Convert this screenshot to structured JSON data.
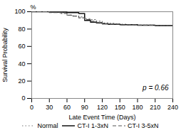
{
  "chart_data": {
    "type": "line",
    "xlabel": "Late Event Time (Days)",
    "ylabel": "Survival Probability",
    "annotations": [
      "%",
      "p = 0.66"
    ],
    "xlim": [
      0,
      240
    ],
    "ylim": [
      0,
      100
    ],
    "xticks": [
      0,
      30,
      60,
      90,
      120,
      150,
      180,
      210,
      240
    ],
    "yticks": [
      0,
      20,
      40,
      60,
      80,
      100
    ],
    "grid": false,
    "legend": "bottom",
    "series": [
      {
        "name": "Normal",
        "color": "#777777",
        "line_style": "dotted",
        "type": "step",
        "x": [
          0,
          30,
          45,
          60,
          70,
          80,
          90,
          100,
          110,
          120,
          130,
          140,
          150,
          160,
          180,
          210,
          240
        ],
        "values": [
          100,
          99.5,
          99,
          96,
          95,
          94,
          92,
          91,
          89,
          87,
          86.5,
          86,
          85.5,
          85,
          84.5,
          84,
          82
        ]
      },
      {
        "name": "CT-I 1-3xN",
        "color": "#111111",
        "line_style": "solid",
        "type": "step",
        "x": [
          0,
          30,
          60,
          80,
          90,
          100,
          110,
          120,
          130,
          150,
          180,
          210,
          240
        ],
        "values": [
          100,
          99.5,
          99,
          98,
          90,
          88,
          87,
          86,
          85.5,
          85,
          84.5,
          84,
          83.5
        ]
      },
      {
        "name": "CT-I 3-5xN",
        "color": "#555555",
        "line_style": "dashed",
        "type": "step",
        "x": [
          0,
          30,
          50,
          60,
          70,
          80,
          90,
          100,
          110,
          120,
          130,
          150,
          180,
          210,
          240
        ],
        "values": [
          100,
          99,
          98,
          96,
          95,
          93,
          91,
          89,
          87.5,
          86,
          85.5,
          85,
          84.5,
          84,
          83.5
        ]
      }
    ]
  }
}
